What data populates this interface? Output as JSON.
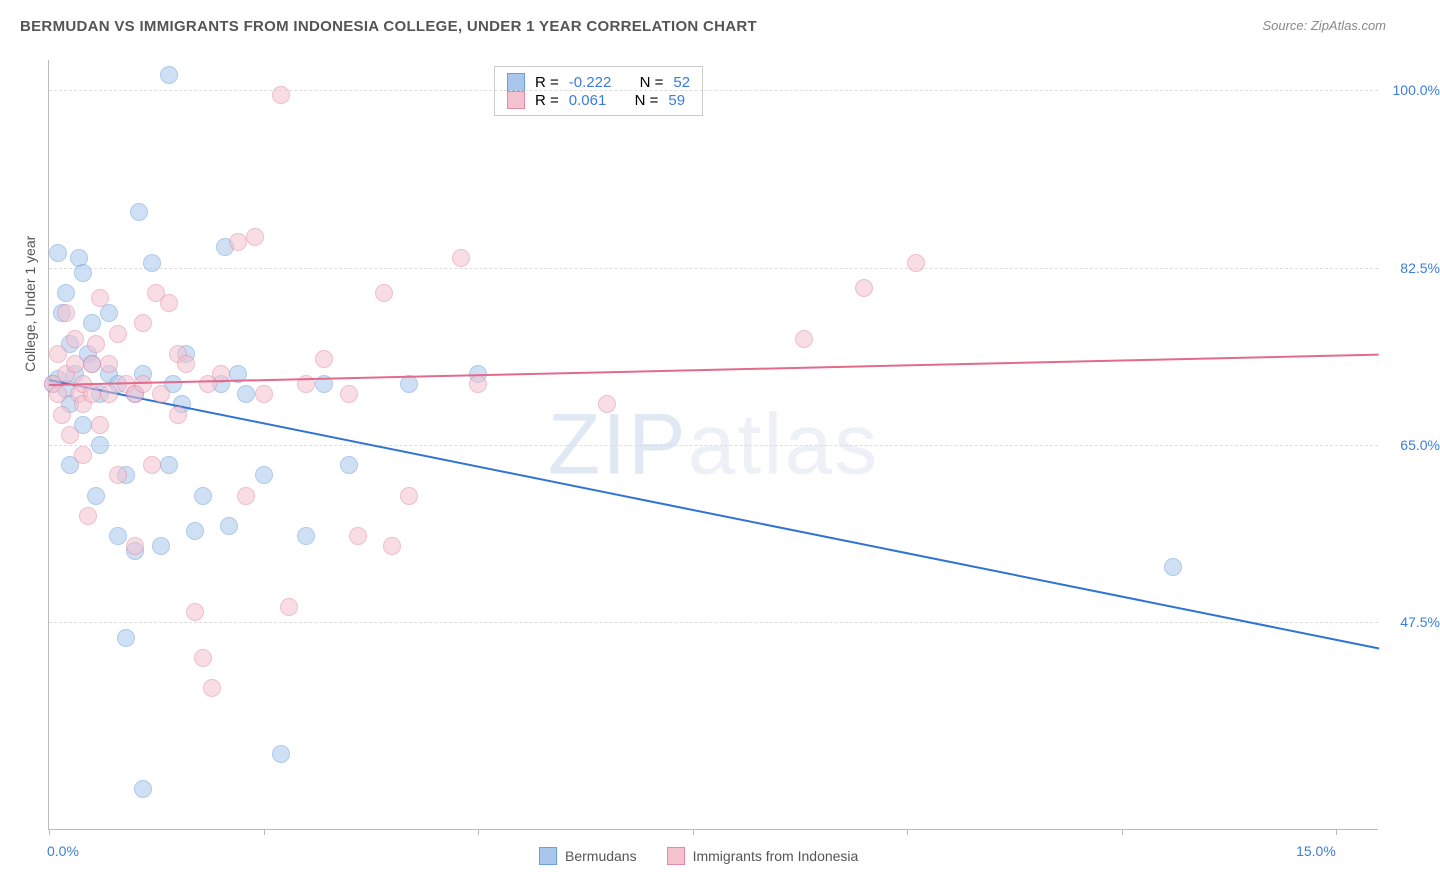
{
  "header": {
    "title": "BERMUDAN VS IMMIGRANTS FROM INDONESIA COLLEGE, UNDER 1 YEAR CORRELATION CHART",
    "source": "Source: ZipAtlas.com"
  },
  "watermark": {
    "zip": "ZIP",
    "atlas": "atlas"
  },
  "chart": {
    "type": "scatter",
    "ylabel": "College, Under 1 year",
    "background_color": "#ffffff",
    "grid_color": "#dddddd",
    "axis_color": "#bbbbbb",
    "x": {
      "min": 0,
      "max": 15.5,
      "ticks": [
        0,
        2.5,
        5,
        7.5,
        10,
        12.5,
        15
      ],
      "tick_labels_shown": {
        "0": "0.0%",
        "15": "15.0%"
      },
      "label_color": "#3b7dd8",
      "label_fontsize": 14
    },
    "y": {
      "min": 27,
      "max": 103,
      "ticks": [
        47.5,
        65.0,
        82.5,
        100.0
      ],
      "tick_labels": [
        "47.5%",
        "65.0%",
        "82.5%",
        "100.0%"
      ],
      "label_color": "#3b7dd8",
      "label_fontsize": 14
    },
    "series": [
      {
        "name": "Bermudans",
        "fill": "#a9c7ec",
        "stroke": "#6d9fde",
        "line_color": "#2e74d0",
        "marker_radius": 9,
        "fill_opacity": 0.55,
        "R": "-0.222",
        "N": "52",
        "trend": {
          "x1": 0,
          "y1": 71.5,
          "x2": 15.5,
          "y2": 45.0
        },
        "points": [
          [
            0.05,
            71
          ],
          [
            0.1,
            71.5
          ],
          [
            0.1,
            84
          ],
          [
            0.15,
            78
          ],
          [
            0.2,
            80
          ],
          [
            0.2,
            70.5
          ],
          [
            0.25,
            63
          ],
          [
            0.25,
            75
          ],
          [
            0.25,
            69
          ],
          [
            0.3,
            72
          ],
          [
            0.35,
            83.5
          ],
          [
            0.4,
            67
          ],
          [
            0.4,
            82
          ],
          [
            0.45,
            74
          ],
          [
            0.5,
            77
          ],
          [
            0.5,
            73
          ],
          [
            0.55,
            60
          ],
          [
            0.6,
            65
          ],
          [
            0.6,
            70
          ],
          [
            0.7,
            78
          ],
          [
            0.7,
            72
          ],
          [
            0.8,
            56
          ],
          [
            0.8,
            71
          ],
          [
            0.9,
            62
          ],
          [
            0.9,
            46
          ],
          [
            1.0,
            54.5
          ],
          [
            1.0,
            70
          ],
          [
            1.05,
            88
          ],
          [
            1.1,
            31
          ],
          [
            1.1,
            72
          ],
          [
            1.2,
            83
          ],
          [
            1.3,
            55
          ],
          [
            1.4,
            63
          ],
          [
            1.4,
            101.5
          ],
          [
            1.45,
            71
          ],
          [
            1.55,
            69
          ],
          [
            1.6,
            74
          ],
          [
            1.7,
            56.5
          ],
          [
            1.8,
            60
          ],
          [
            2.0,
            71
          ],
          [
            2.05,
            84.5
          ],
          [
            2.1,
            57
          ],
          [
            2.2,
            72
          ],
          [
            2.3,
            70
          ],
          [
            2.5,
            62
          ],
          [
            2.7,
            34.5
          ],
          [
            3.0,
            56
          ],
          [
            3.2,
            71
          ],
          [
            3.5,
            63
          ],
          [
            4.2,
            71
          ],
          [
            5.0,
            72
          ],
          [
            13.1,
            53
          ]
        ]
      },
      {
        "name": "Immigrants from Indonesia",
        "fill": "#f4c2cf",
        "stroke": "#e48aa5",
        "line_color": "#e26a8d",
        "marker_radius": 9,
        "fill_opacity": 0.55,
        "R": "0.061",
        "N": "59",
        "trend": {
          "x1": 0,
          "y1": 71.0,
          "x2": 15.5,
          "y2": 74.0
        },
        "points": [
          [
            0.05,
            71
          ],
          [
            0.1,
            70
          ],
          [
            0.1,
            74
          ],
          [
            0.15,
            68
          ],
          [
            0.2,
            78
          ],
          [
            0.2,
            72
          ],
          [
            0.25,
            66
          ],
          [
            0.3,
            73
          ],
          [
            0.3,
            75.5
          ],
          [
            0.35,
            70
          ],
          [
            0.4,
            71
          ],
          [
            0.4,
            69
          ],
          [
            0.4,
            64
          ],
          [
            0.45,
            58
          ],
          [
            0.5,
            73
          ],
          [
            0.5,
            70
          ],
          [
            0.55,
            75
          ],
          [
            0.6,
            79.5
          ],
          [
            0.6,
            67
          ],
          [
            0.7,
            73
          ],
          [
            0.7,
            70
          ],
          [
            0.8,
            76
          ],
          [
            0.8,
            62
          ],
          [
            0.9,
            71
          ],
          [
            1.0,
            55
          ],
          [
            1.0,
            70
          ],
          [
            1.1,
            77
          ],
          [
            1.1,
            71
          ],
          [
            1.2,
            63
          ],
          [
            1.25,
            80
          ],
          [
            1.3,
            70
          ],
          [
            1.4,
            79
          ],
          [
            1.5,
            74
          ],
          [
            1.5,
            68
          ],
          [
            1.6,
            73
          ],
          [
            1.7,
            48.5
          ],
          [
            1.8,
            44
          ],
          [
            1.85,
            71
          ],
          [
            1.9,
            41
          ],
          [
            2.0,
            72
          ],
          [
            2.2,
            85
          ],
          [
            2.3,
            60
          ],
          [
            2.4,
            85.5
          ],
          [
            2.5,
            70
          ],
          [
            2.7,
            99.5
          ],
          [
            2.8,
            49
          ],
          [
            3.0,
            71
          ],
          [
            3.2,
            73.5
          ],
          [
            3.5,
            70
          ],
          [
            3.6,
            56
          ],
          [
            3.9,
            80
          ],
          [
            4.0,
            55
          ],
          [
            4.2,
            60
          ],
          [
            4.8,
            83.5
          ],
          [
            5.0,
            71
          ],
          [
            6.5,
            69
          ],
          [
            8.8,
            75.5
          ],
          [
            9.5,
            80.5
          ],
          [
            10.1,
            83
          ]
        ]
      }
    ],
    "stats_legend": {
      "r_label": "R =",
      "n_label": "N =",
      "value_color": "#3b7dd8"
    },
    "bottom_legend": {
      "fontsize": 14
    }
  }
}
